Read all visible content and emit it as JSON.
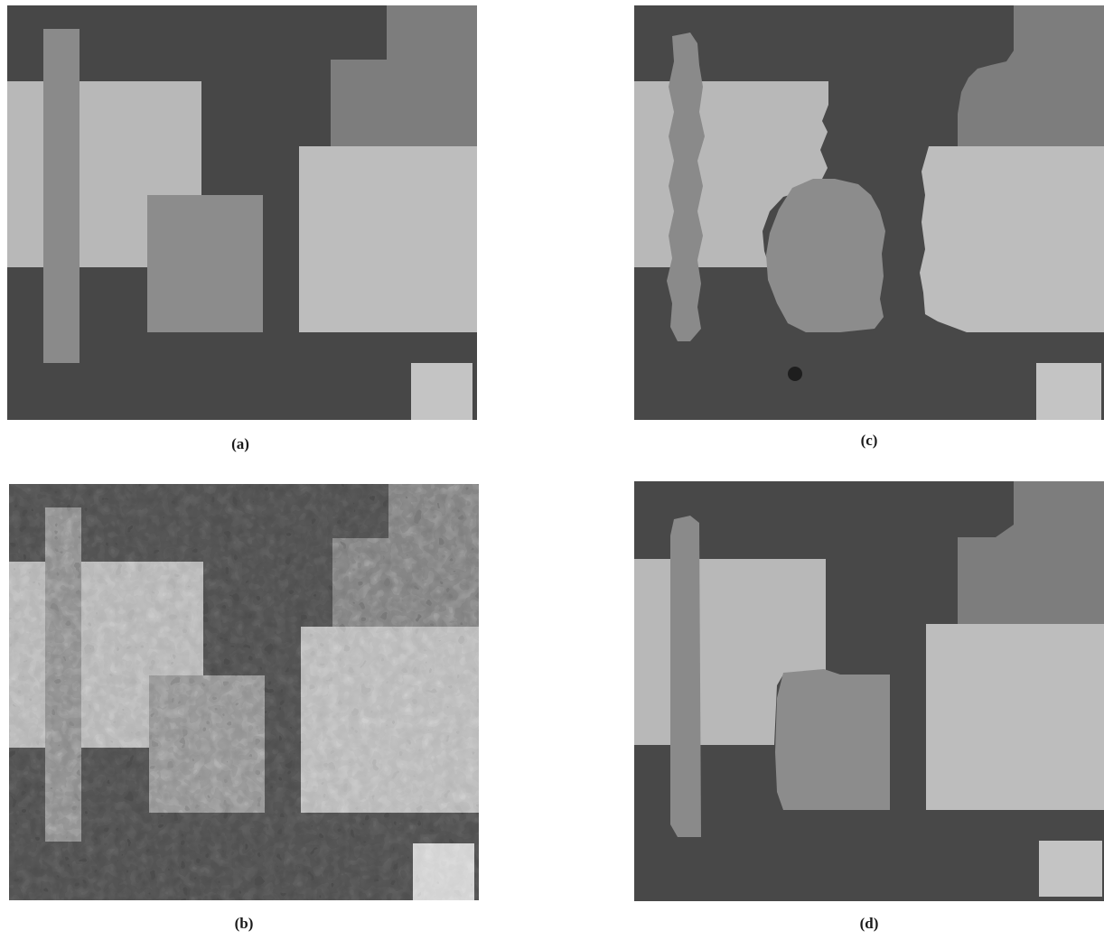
{
  "figure": {
    "panels": [
      {
        "id": "a",
        "caption": "(a)",
        "content": "synthetic-image"
      },
      {
        "id": "b",
        "caption": "(b)",
        "content": "noisy-observation"
      },
      {
        "id": "c",
        "caption": "(c)",
        "content": "segmentation-result"
      },
      {
        "id": "d",
        "caption": "(d)",
        "content": "segmentation-result"
      }
    ],
    "gray_levels": {
      "background": "#4a4a4a",
      "light": "#b9b9b9",
      "medium": "#8e8e8e",
      "upper_right": "#7f7f7f"
    }
  }
}
